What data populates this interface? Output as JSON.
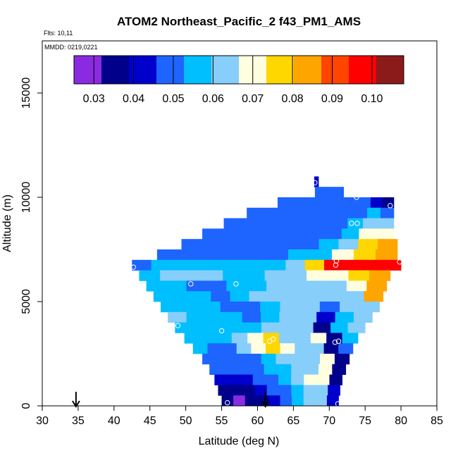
{
  "chart_data": {
    "type": "heatmap",
    "title": "ATOM2 Northeast_Pacific_2 f43_PM1_AMS",
    "flights_text": "Flts: 10,11",
    "mmdd_text": "MMDD: 0219,0221",
    "xlabel": "Latitude (deg N)",
    "ylabel": "Altitude (m)",
    "xlim": [
      30,
      85
    ],
    "ylim": [
      0,
      17500
    ],
    "x_ticks": [
      "30",
      "35",
      "40",
      "45",
      "50",
      "55",
      "60",
      "65",
      "70",
      "75",
      "80",
      "85"
    ],
    "y_ticks": [
      "0",
      "5000",
      "10000",
      "15000"
    ],
    "grid": false,
    "colorbar": {
      "range": [
        0.025,
        0.108
      ],
      "tick_values": [
        0.03,
        0.04,
        0.05,
        0.06,
        0.07,
        0.08,
        0.09,
        0.1
      ],
      "tick_labels": [
        "0.03",
        "0.04",
        "0.05",
        "0.06",
        "0.07",
        "0.08",
        "0.09",
        "0.10"
      ],
      "colors": [
        "#8a2be2",
        "#00008b",
        "#0000cd",
        "#1e64ff",
        "#00bfff",
        "#87cefa",
        "#ffffe0",
        "#ffd700",
        "#ffa500",
        "#ff4500",
        "#ff0000",
        "#8b1a1a"
      ]
    },
    "arrows_lat": [
      34.7,
      61.1
    ],
    "layers": [
      {
        "z": 10750,
        "lat_min": 67.9,
        "lat_max": 68.5,
        "v": [
          0.04,
          0.04
        ]
      },
      {
        "z": 10250,
        "lat_min": 68.0,
        "lat_max": 72.0,
        "v": [
          0.046,
          0.048,
          0.05
        ]
      },
      {
        "z": 9750,
        "lat_min": 62.8,
        "lat_max": 79.0,
        "v": [
          0.046,
          0.046,
          0.047,
          0.047,
          0.048,
          0.048,
          0.049,
          0.05,
          0.04,
          0.032
        ]
      },
      {
        "z": 9250,
        "lat_min": 58.5,
        "lat_max": 79.0,
        "v": [
          0.046,
          0.046,
          0.046,
          0.047,
          0.047,
          0.048,
          0.048,
          0.05,
          0.052,
          0.055,
          0.05
        ]
      },
      {
        "z": 8750,
        "lat_min": 55.3,
        "lat_max": 79.0,
        "v": [
          0.046,
          0.046,
          0.046,
          0.047,
          0.047,
          0.048,
          0.05,
          0.052,
          0.056,
          0.06,
          0.064
        ]
      },
      {
        "z": 8250,
        "lat_min": 52.3,
        "lat_max": 79.0,
        "v": [
          0.047,
          0.047,
          0.047,
          0.048,
          0.048,
          0.049,
          0.05,
          0.052,
          0.058,
          0.068,
          0.072
        ]
      },
      {
        "z": 7750,
        "lat_min": 49.4,
        "lat_max": 79.5,
        "v": [
          0.048,
          0.048,
          0.048,
          0.049,
          0.05,
          0.05,
          0.052,
          0.055,
          0.066,
          0.076,
          0.082
        ]
      },
      {
        "z": 7250,
        "lat_min": 46.0,
        "lat_max": 79.5,
        "v": [
          0.05,
          0.05,
          0.05,
          0.05,
          0.051,
          0.052,
          0.054,
          0.058,
          0.07,
          0.08,
          0.084
        ]
      },
      {
        "z": 6750,
        "lat_min": 42.5,
        "lat_max": 80.0,
        "v": [
          0.052,
          0.053,
          0.054,
          0.054,
          0.055,
          0.055,
          0.056,
          0.058,
          0.062,
          0.08,
          0.095,
          0.1,
          0.1,
          0.098
        ]
      },
      {
        "z": 6250,
        "lat_min": 43.5,
        "lat_max": 78.5,
        "v": [
          0.058,
          0.06,
          0.062,
          0.06,
          0.058,
          0.058,
          0.06,
          0.064,
          0.068,
          0.072,
          0.076,
          0.082
        ]
      },
      {
        "z": 5750,
        "lat_min": 44.5,
        "lat_max": 78.0,
        "v": [
          0.058,
          0.057,
          0.052,
          0.05,
          0.055,
          0.058,
          0.06,
          0.062,
          0.064,
          0.066,
          0.07,
          0.086
        ]
      },
      {
        "z": 5250,
        "lat_min": 45.5,
        "lat_max": 77.5,
        "v": [
          0.058,
          0.056,
          0.055,
          0.05,
          0.056,
          0.06,
          0.062,
          0.063,
          0.064,
          0.062,
          0.066,
          0.084
        ]
      },
      {
        "z": 4750,
        "lat_min": 46.5,
        "lat_max": 77.0,
        "v": [
          0.058,
          0.057,
          0.058,
          0.05,
          0.052,
          0.056,
          0.06,
          0.064,
          0.048,
          0.06,
          0.064
        ]
      },
      {
        "z": 4250,
        "lat_min": 47.5,
        "lat_max": 76.0,
        "v": [
          0.06,
          0.058,
          0.056,
          0.055,
          0.052,
          0.058,
          0.062,
          0.066,
          0.04,
          0.058,
          0.062
        ]
      },
      {
        "z": 3750,
        "lat_min": 48.5,
        "lat_max": 75.0,
        "v": [
          0.058,
          0.056,
          0.055,
          0.053,
          0.055,
          0.06,
          0.064,
          0.066,
          0.035,
          0.055,
          0.06
        ]
      },
      {
        "z": 3250,
        "lat_min": 49.8,
        "lat_max": 74.0,
        "v": [
          0.056,
          0.055,
          0.053,
          0.062,
          0.072,
          0.075,
          0.064,
          0.066,
          0.07,
          0.034,
          0.055
        ]
      },
      {
        "z": 2750,
        "lat_min": 51.0,
        "lat_max": 73.3,
        "v": [
          0.056,
          0.052,
          0.05,
          0.06,
          0.07,
          0.08,
          0.07,
          0.064,
          0.066,
          0.032,
          0.05
        ]
      },
      {
        "z": 2250,
        "lat_min": 52.3,
        "lat_max": 72.8,
        "v": [
          0.052,
          0.05,
          0.05,
          0.052,
          0.055,
          0.06,
          0.062,
          0.066,
          0.068,
          0.032
        ]
      },
      {
        "z": 1750,
        "lat_min": 53.3,
        "lat_max": 72.3,
        "v": [
          0.05,
          0.048,
          0.048,
          0.05,
          0.055,
          0.058,
          0.062,
          0.066,
          0.068,
          0.032
        ]
      },
      {
        "z": 1250,
        "lat_min": 54.0,
        "lat_max": 71.8,
        "v": [
          0.045,
          0.04,
          0.042,
          0.048,
          0.052,
          0.056,
          0.062,
          0.068,
          0.07,
          0.035
        ]
      },
      {
        "z": 750,
        "lat_min": 54.5,
        "lat_max": 71.5,
        "v": [
          0.035,
          0.032,
          0.034,
          0.04,
          0.046,
          0.052,
          0.058,
          0.064,
          0.066,
          0.04
        ]
      },
      {
        "z": 250,
        "lat_min": 55.0,
        "lat_max": 71.3,
        "v": [
          0.032,
          0.03,
          0.032,
          0.036,
          0.042,
          0.05,
          0.058,
          0.062,
          0.06,
          0.045
        ]
      }
    ],
    "sample_points": [
      {
        "lat": 68.0,
        "alt": 10700
      },
      {
        "lat": 73.8,
        "alt": 10000
      },
      {
        "lat": 78.5,
        "alt": 9600
      },
      {
        "lat": 73.1,
        "alt": 8750
      },
      {
        "lat": 73.9,
        "alt": 8750
      },
      {
        "lat": 71.0,
        "alt": 6950
      },
      {
        "lat": 70.9,
        "alt": 6750
      },
      {
        "lat": 79.8,
        "alt": 6900
      },
      {
        "lat": 42.7,
        "alt": 6650
      },
      {
        "lat": 50.7,
        "alt": 5850
      },
      {
        "lat": 57.0,
        "alt": 5850
      },
      {
        "lat": 73.0,
        "alt": 5850
      },
      {
        "lat": 48.9,
        "alt": 3850
      },
      {
        "lat": 55.0,
        "alt": 3600
      },
      {
        "lat": 61.7,
        "alt": 3100
      },
      {
        "lat": 62.2,
        "alt": 3200
      },
      {
        "lat": 70.8,
        "alt": 3050
      },
      {
        "lat": 71.3,
        "alt": 3100
      },
      {
        "lat": 55.8,
        "alt": 150
      },
      {
        "lat": 71.2,
        "alt": 100
      }
    ]
  }
}
